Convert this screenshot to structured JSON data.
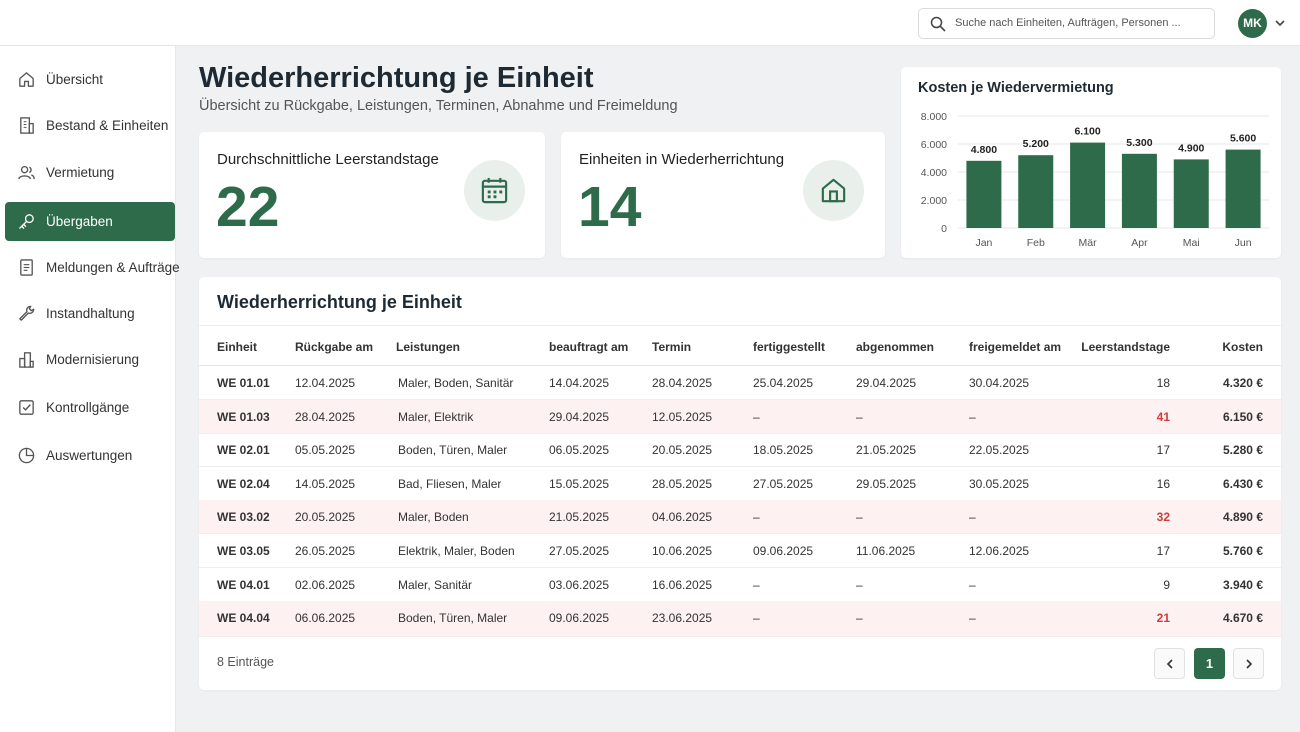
{
  "topbar": {
    "search_placeholder": "Suche nach Einheiten, Aufträgen, Personen ...",
    "user_initials": "MK"
  },
  "sidebar": {
    "items": [
      {
        "label": "Übersicht",
        "icon": "home-icon"
      },
      {
        "label": "Bestand & Einheiten",
        "icon": "building-icon"
      },
      {
        "label": "Vermietung",
        "icon": "users-icon"
      },
      {
        "label": "Übergaben",
        "icon": "key-icon",
        "active": true
      },
      {
        "label": "Meldungen & Aufträge",
        "icon": "document-icon"
      },
      {
        "label": "Instandhaltung",
        "icon": "wrench-icon"
      },
      {
        "label": "Modernisierung",
        "icon": "chart-building-icon"
      },
      {
        "label": "Kontrollgänge",
        "icon": "checkbox-icon"
      },
      {
        "label": "Auswertungen",
        "icon": "pie-icon"
      }
    ]
  },
  "header": {
    "title": "Wiederherrichtung je Einheit",
    "subtitle": "Übersicht zu Rückgabe, Leistungen, Terminen, Abnahme und Freimeldung"
  },
  "kpis": {
    "vacancy": {
      "label": "Durchschnittliche Leerstandstage",
      "value": "22",
      "icon": "calendar-icon"
    },
    "units": {
      "label": "Einheiten in Wiederherrichtung",
      "value": "14",
      "icon": "house-icon"
    }
  },
  "colors": {
    "accent": "#2e6b4a",
    "alert_text": "#d23b3b",
    "alert_row": "#fdf1f1"
  },
  "chart_data": {
    "type": "bar",
    "title": "Kosten je Wiedervermietung",
    "categories": [
      "Jan",
      "Feb",
      "Mär",
      "Apr",
      "Mai",
      "Jun"
    ],
    "values": [
      4800,
      5200,
      6100,
      5300,
      4900,
      5600
    ],
    "value_labels": [
      "4.800",
      "5.200",
      "6.100",
      "5.300",
      "4.900",
      "5.600"
    ],
    "yticks": [
      "0",
      "2.000",
      "4.000",
      "6.000",
      "8.000"
    ],
    "ylim": [
      0,
      8000
    ],
    "grid": true,
    "color": "#2e6b4a"
  },
  "table": {
    "title": "Wiederherrichtung je Einheit",
    "headers": [
      "Einheit",
      "Rückgabe am",
      "Leistungen",
      "beauftragt am",
      "Termin",
      "fertiggestellt",
      "abgenommen",
      "freigemeldet am",
      "Leerstandstage",
      "Kosten"
    ],
    "rows": [
      {
        "unit": "WE 01.01",
        "returned": "12.04.2025",
        "services": "Maler, Boden, Sanitär",
        "ordered": "14.04.2025",
        "date": "28.04.2025",
        "finished": "25.04.2025",
        "accepted": "29.04.2025",
        "released": "30.04.2025",
        "days": "18",
        "cost": "4.320 €",
        "alert": false
      },
      {
        "unit": "WE 01.03",
        "returned": "28.04.2025",
        "services": "Maler, Elektrik",
        "ordered": "29.04.2025",
        "date": "12.05.2025",
        "finished": "–",
        "accepted": "–",
        "released": "–",
        "days": "41",
        "cost": "6.150 €",
        "alert": true
      },
      {
        "unit": "WE 02.01",
        "returned": "05.05.2025",
        "services": "Boden, Türen, Maler",
        "ordered": "06.05.2025",
        "date": "20.05.2025",
        "finished": "18.05.2025",
        "accepted": "21.05.2025",
        "released": "22.05.2025",
        "days": "17",
        "cost": "5.280 €",
        "alert": false
      },
      {
        "unit": "WE 02.04",
        "returned": "14.05.2025",
        "services": "Bad, Fliesen, Maler",
        "ordered": "15.05.2025",
        "date": "28.05.2025",
        "finished": "27.05.2025",
        "accepted": "29.05.2025",
        "released": "30.05.2025",
        "days": "16",
        "cost": "6.430 €",
        "alert": false
      },
      {
        "unit": "WE 03.02",
        "returned": "20.05.2025",
        "services": "Maler, Boden",
        "ordered": "21.05.2025",
        "date": "04.06.2025",
        "finished": "–",
        "accepted": "–",
        "released": "–",
        "days": "32",
        "cost": "4.890 €",
        "alert": true
      },
      {
        "unit": "WE 03.05",
        "returned": "26.05.2025",
        "services": "Elektrik, Maler, Boden",
        "ordered": "27.05.2025",
        "date": "10.06.2025",
        "finished": "09.06.2025",
        "accepted": "11.06.2025",
        "released": "12.06.2025",
        "days": "17",
        "cost": "5.760 €",
        "alert": false
      },
      {
        "unit": "WE 04.01",
        "returned": "02.06.2025",
        "services": "Maler, Sanitär",
        "ordered": "03.06.2025",
        "date": "16.06.2025",
        "finished": "–",
        "accepted": "–",
        "released": "–",
        "days": "9",
        "cost": "3.940 €",
        "alert": false
      },
      {
        "unit": "WE 04.04",
        "returned": "06.06.2025",
        "services": "Boden, Türen, Maler",
        "ordered": "09.06.2025",
        "date": "23.06.2025",
        "finished": "–",
        "accepted": "–",
        "released": "–",
        "days": "21",
        "cost": "4.670 €",
        "alert": true
      }
    ],
    "footer": "8 Einträge",
    "current_page": "1"
  }
}
